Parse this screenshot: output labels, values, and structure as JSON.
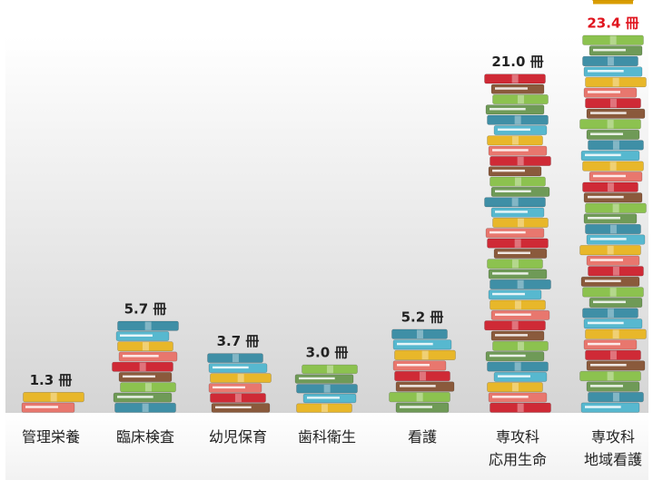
{
  "chart_data": {
    "type": "bar",
    "categories": [
      [
        "管理栄養"
      ],
      [
        "臨床検査"
      ],
      [
        "幼児保育"
      ],
      [
        "歯科衛生"
      ],
      [
        "看護"
      ],
      [
        "専攻科",
        "応用生命"
      ],
      [
        "専攻科",
        "地域看護"
      ]
    ],
    "values": [
      1.3,
      5.7,
      3.7,
      3.0,
      5.2,
      21.0,
      23.4
    ],
    "value_labels": [
      "1.3 冊",
      "5.7 冊",
      "3.7 冊",
      "3.0 冊",
      "5.2 冊",
      "21.0 冊",
      "23.4 冊"
    ],
    "unit": "冊",
    "highlight_index": 6,
    "highlight_color": "#e0141e",
    "grid": false,
    "legend": "none",
    "marker": "book-stack",
    "book_colors": [
      "#e8776e",
      "#3f8fa6",
      "#8a5a3c",
      "#e8b72a",
      "#6f9a57",
      "#cf2a36",
      "#57b8cf",
      "#8cc24f"
    ],
    "crown_icon": "crown-icon",
    "crown_color": "#f0b400"
  }
}
